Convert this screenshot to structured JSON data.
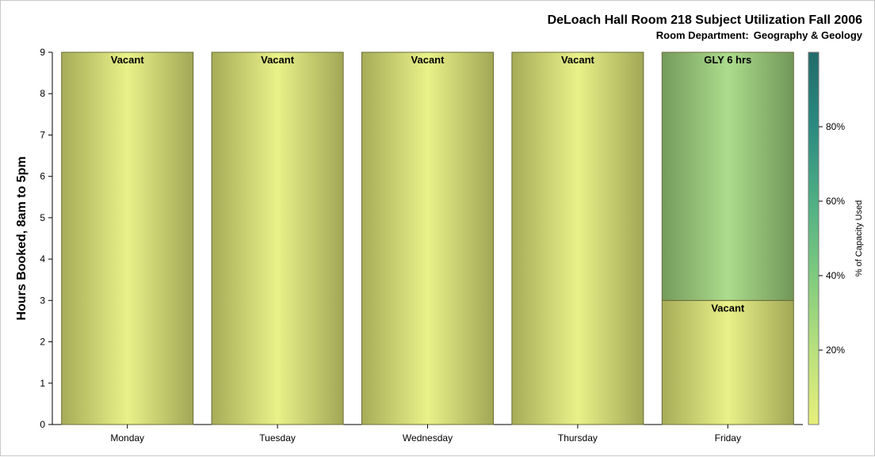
{
  "chart_data": {
    "type": "bar",
    "stacked": true,
    "title": "DeLoach Hall Room 218 Subject Utilization Fall 2006",
    "subtitle_label": "Room Department:",
    "subtitle_value": "Geography & Geology",
    "ylabel": "Hours Booked, 8am to 5pm",
    "xlabel": "",
    "ylim": [
      0,
      9
    ],
    "yticks": [
      "0",
      "1",
      "2",
      "3",
      "4",
      "5",
      "6",
      "7",
      "8",
      "9"
    ],
    "categories": [
      "Monday",
      "Tuesday",
      "Wednesday",
      "Thursday",
      "Friday"
    ],
    "bars": [
      {
        "category": "Monday",
        "segments": [
          {
            "label": "Vacant",
            "value": 9,
            "capacity_pct": 0
          }
        ]
      },
      {
        "category": "Tuesday",
        "segments": [
          {
            "label": "Vacant",
            "value": 9,
            "capacity_pct": 0
          }
        ]
      },
      {
        "category": "Wednesday",
        "segments": [
          {
            "label": "Vacant",
            "value": 9,
            "capacity_pct": 0
          }
        ]
      },
      {
        "category": "Thursday",
        "segments": [
          {
            "label": "Vacant",
            "value": 9,
            "capacity_pct": 0
          }
        ]
      },
      {
        "category": "Friday",
        "segments": [
          {
            "label": "Vacant",
            "value": 3,
            "capacity_pct": 0
          },
          {
            "label": "GLY 6 hrs",
            "value": 6,
            "capacity_pct": 28
          }
        ]
      }
    ],
    "colorbar": {
      "title": "% of Capacity Used",
      "range": [
        0,
        100
      ],
      "ticks": [
        "20%",
        "40%",
        "60%",
        "80%"
      ],
      "tick_values": [
        20,
        40,
        60,
        80
      ],
      "colors": [
        "#e6ef79",
        "#b8e07e",
        "#7fca7f",
        "#4fae84",
        "#2a8a80",
        "#226b6b"
      ]
    },
    "grid": false,
    "legend": "colorbar-right"
  }
}
